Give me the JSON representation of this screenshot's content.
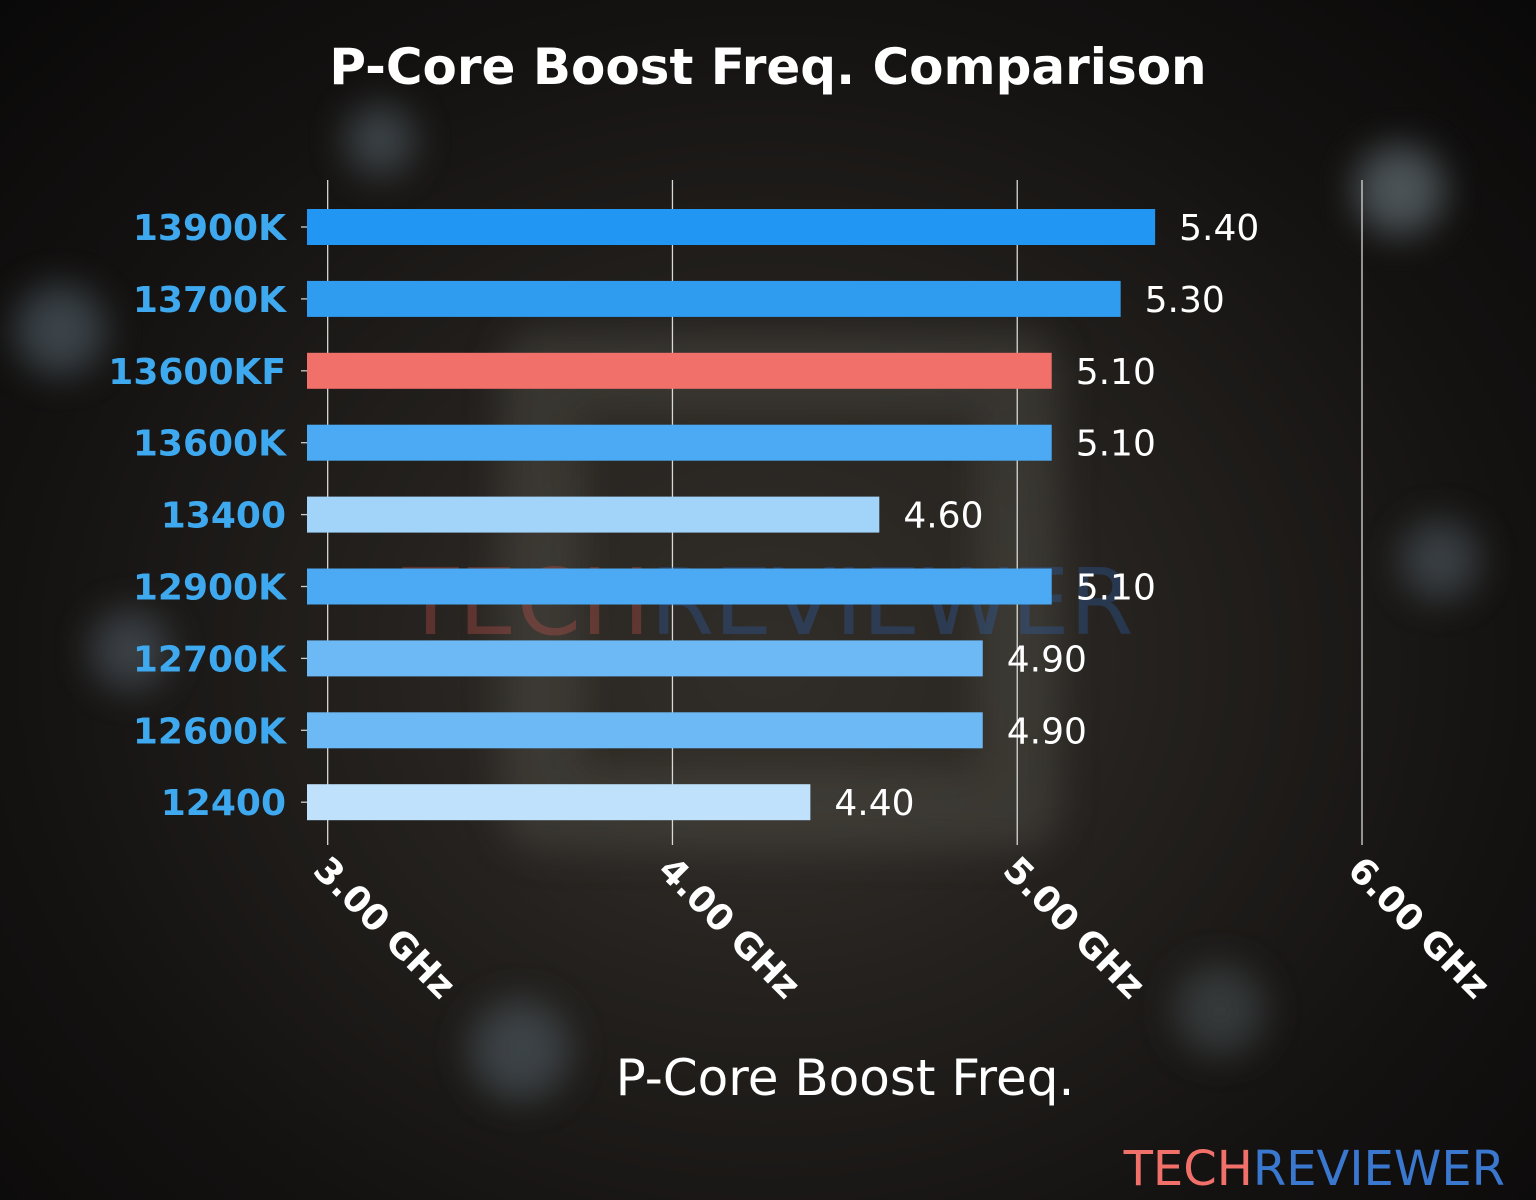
{
  "chart_data": {
    "type": "bar",
    "orientation": "horizontal",
    "title": "P-Core Boost Freq. Comparison",
    "xlabel": "P-Core Boost Freq.",
    "ylabel": "",
    "categories": [
      "13900K",
      "13700K",
      "13600KF",
      "13600K",
      "13400",
      "12900K",
      "12700K",
      "12600K",
      "12400"
    ],
    "values": [
      5.4,
      5.3,
      5.1,
      5.1,
      4.6,
      5.1,
      4.9,
      4.9,
      4.4
    ],
    "data_labels": [
      "5.40",
      "5.30",
      "5.10",
      "5.10",
      "4.60",
      "5.10",
      "4.90",
      "4.90",
      "4.40"
    ],
    "bar_colors": [
      "#2196f3",
      "#309cf0",
      "#f2706a",
      "#4baaf3",
      "#a2d3f8",
      "#4baaf3",
      "#6cb9f5",
      "#6cb9f5",
      "#bfe1fb"
    ],
    "xticks": [
      3,
      4,
      5,
      6
    ],
    "xtick_labels": [
      "3.00 GHz",
      "4.00 GHz",
      "5.00 GHz",
      "6.00 GHz"
    ],
    "xlim": [
      2.94,
      6.0
    ],
    "grid": "vertical",
    "label_color": "#3fa9ef"
  },
  "watermark": {
    "part1": "TECH",
    "part2": "REVIEWER",
    "color1": "#f2706a",
    "color2": "#3a78d0"
  }
}
